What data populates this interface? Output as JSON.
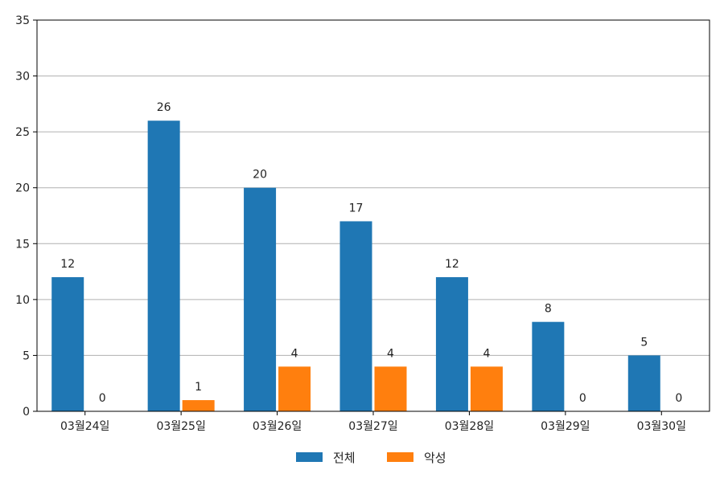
{
  "chart_data": {
    "type": "bar",
    "categories": [
      "03월24일",
      "03월25일",
      "03월26일",
      "03월27일",
      "03월28일",
      "03월29일",
      "03월30일"
    ],
    "series": [
      {
        "name": "전체",
        "values": [
          12,
          26,
          20,
          17,
          12,
          8,
          5
        ],
        "color": "#1f77b4"
      },
      {
        "name": "악성",
        "values": [
          0,
          1,
          4,
          4,
          4,
          0,
          0
        ],
        "color": "#ff7f0e"
      }
    ],
    "ylim": [
      0,
      35
    ],
    "yticks": [
      0,
      5,
      10,
      15,
      20,
      25,
      30,
      35
    ],
    "grid": "y",
    "legend_position": "bottom-center",
    "data_labels": true
  }
}
